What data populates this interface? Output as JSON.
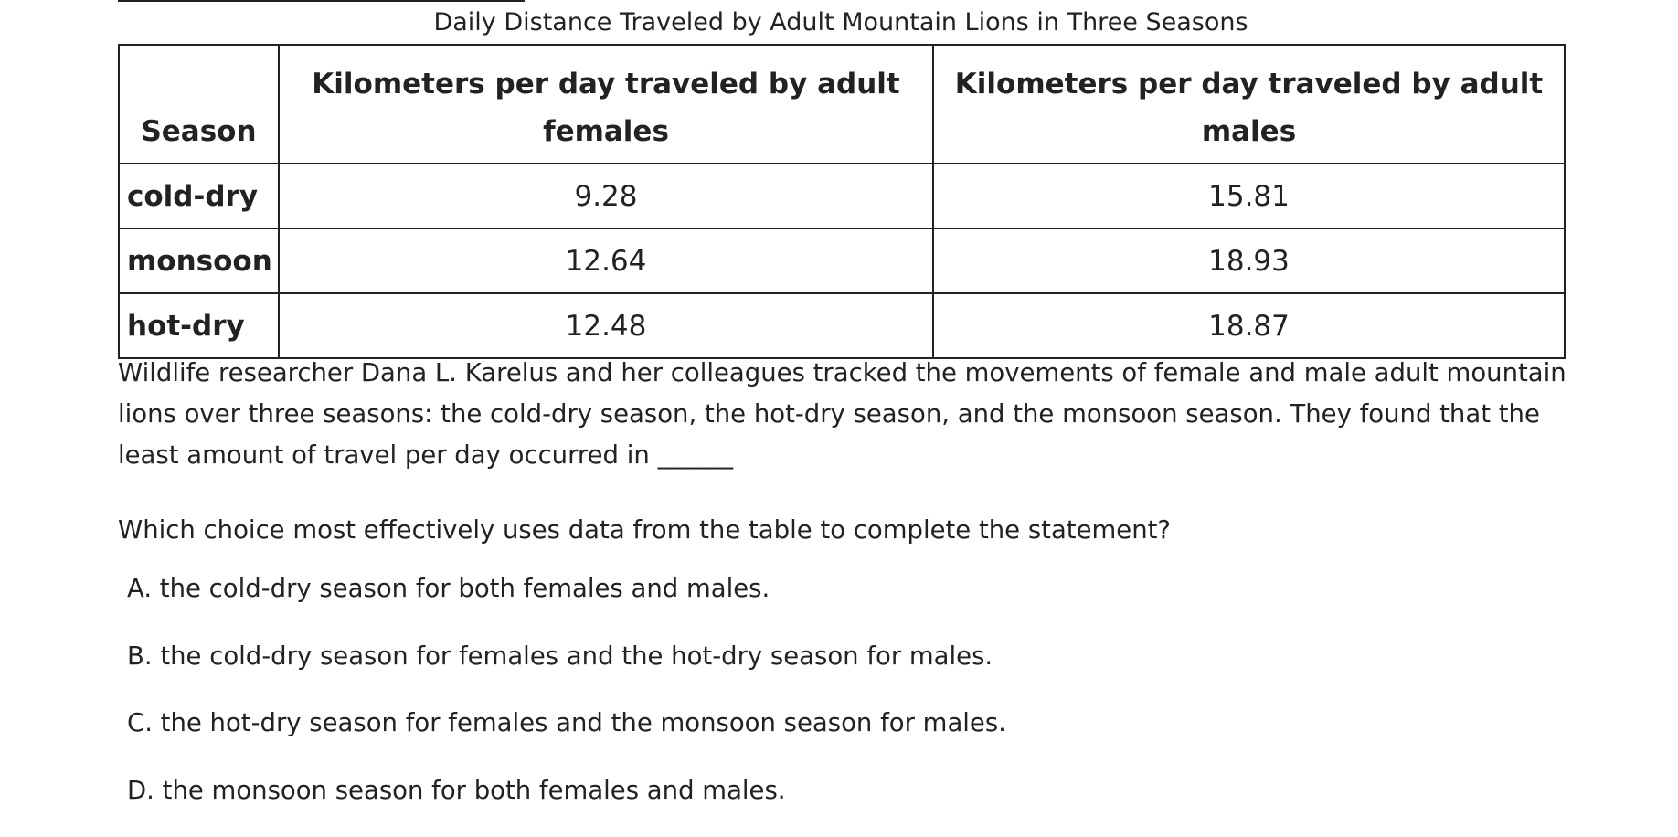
{
  "table": {
    "title": "Daily Distance Traveled by Adult Mountain Lions in Three Seasons",
    "headers": [
      "Season",
      "Kilometers per day traveled by adult females",
      "Kilometers per day traveled by adult males"
    ],
    "rows": [
      [
        "cold-dry",
        "9.28",
        "15.81"
      ],
      [
        "monsoon",
        "12.64",
        "18.93"
      ],
      [
        "hot-dry",
        "12.48",
        "18.87"
      ]
    ]
  },
  "passage": "Wildlife researcher Dana L. Karelus and her colleagues tracked the movements of female and male adult mountain lions over three seasons: the cold-dry season, the hot-dry season, and the monsoon season. They found that the least amount of travel per day occurred in ______",
  "question": "Which choice most effectively uses data from the table to complete the statement?",
  "choices": [
    "A. the cold-dry season for both females and males.",
    "B. the cold-dry season for females and the hot-dry season for males.",
    "C. the hot-dry season for females and the monsoon season for males.",
    "D. the monsoon season for both females and males."
  ]
}
